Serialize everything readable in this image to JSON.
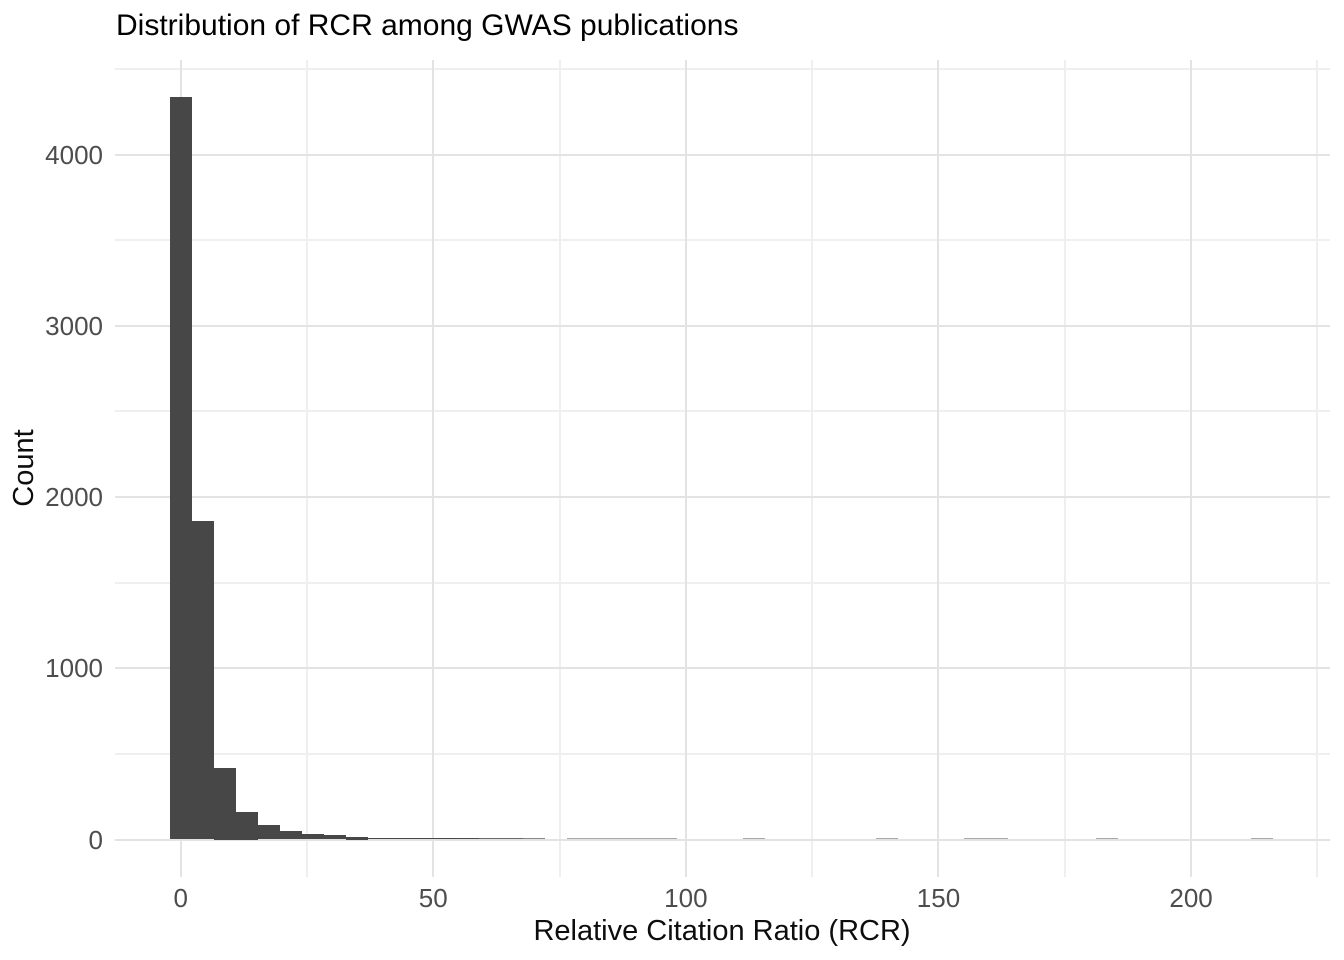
{
  "page": {
    "background": "#ffffff"
  },
  "chart_data": {
    "type": "bar",
    "subtype": "histogram",
    "title": "Distribution of RCR among GWAS publications",
    "xlabel": "Relative Citation Ratio (RCR)",
    "ylabel": "Count",
    "legend": "none",
    "grid": "on",
    "background": "#ffffff",
    "x_tick_labels": [
      "0",
      "50",
      "100",
      "150",
      "200"
    ],
    "x_tick_values": [
      0,
      50,
      100,
      150,
      200
    ],
    "x_minor_values": [
      25,
      75,
      125,
      175,
      225
    ],
    "y_tick_labels": [
      "0",
      "1000",
      "2000",
      "3000",
      "4000"
    ],
    "y_tick_values": [
      0,
      1000,
      2000,
      3000,
      4000
    ],
    "y_minor_values": [
      500,
      1500,
      2500,
      3500,
      4500
    ],
    "xlim": [
      -13,
      227.5
    ],
    "ylim": [
      -219,
      4553
    ],
    "bin_width": 4.37,
    "bin_centers": [
      0,
      4.37,
      8.73,
      13.1,
      17.47,
      21.84,
      26.2,
      30.57,
      34.94,
      39.31,
      43.67,
      48.04,
      52.41,
      56.77,
      61.14,
      65.51,
      69.88,
      74.24,
      78.61,
      82.98,
      87.35,
      91.71,
      96.08,
      100.45,
      104.82,
      109.18,
      113.55,
      117.92,
      122.28,
      126.65,
      131.02,
      135.39,
      139.75,
      144.12,
      148.49,
      152.86,
      157.22,
      161.59,
      165.96,
      170.32,
      174.69,
      179.06,
      183.43,
      187.79,
      192.16,
      196.53,
      200.9,
      205.26,
      209.63,
      214.0
    ],
    "counts": [
      4335,
      1858,
      416,
      160,
      85,
      50,
      35,
      24,
      16,
      11,
      9,
      7,
      5,
      4,
      3,
      3,
      2,
      0,
      1,
      1,
      1,
      1,
      1,
      0,
      0,
      0,
      1,
      0,
      0,
      0,
      0,
      0,
      1,
      0,
      0,
      0,
      1,
      1,
      0,
      0,
      0,
      0,
      1,
      0,
      0,
      0,
      0,
      0,
      0,
      1
    ],
    "colors": {
      "bar": "#474747",
      "grid_major": "#e3e3e3",
      "grid_minor": "#efefef",
      "tick_label": "#4d4d4d",
      "text": "#0d0d0d",
      "background": "#ffffff"
    }
  }
}
